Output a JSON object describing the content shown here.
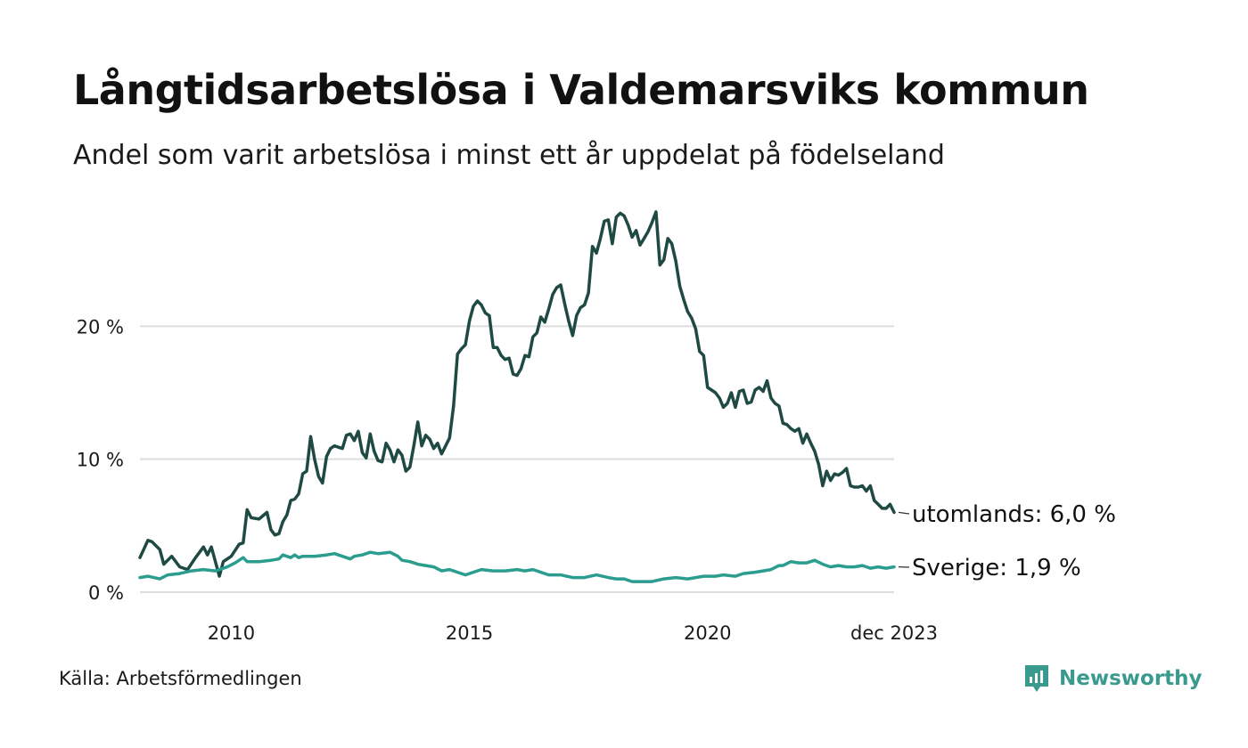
{
  "header": {
    "title": "Långtidsarbetslösa i Valdemarsviks kommun",
    "subtitle": "Andel som varit arbetslösa i minst ett år uppdelat på födelseland"
  },
  "footer": {
    "source": "Källa: Arbetsförmedlingen",
    "brand": "Newsworthy"
  },
  "colors": {
    "utomlands": "#1f4a44",
    "sverige": "#2a9d8f",
    "grid": "#dddddd",
    "brand": "#3a9a8e"
  },
  "chart_data": {
    "type": "line",
    "title": "Långtidsarbetslösa i Valdemarsviks kommun",
    "subtitle": "Andel som varit arbetslösa i minst ett år uppdelat på födelseland",
    "xlabel": "",
    "ylabel": "",
    "x_range": [
      2008.083,
      2023.917
    ],
    "ylim": [
      0,
      30
    ],
    "grid": true,
    "y_ticks": [
      {
        "value": 0,
        "label": "0 %"
      },
      {
        "value": 10,
        "label": "10 %"
      },
      {
        "value": 20,
        "label": "20 %"
      }
    ],
    "x_ticks": [
      {
        "value": 2010,
        "label": "2010"
      },
      {
        "value": 2015,
        "label": "2015"
      },
      {
        "value": 2020,
        "label": "2020"
      },
      {
        "value": 2023.917,
        "label": "dec 2023"
      }
    ],
    "series": [
      {
        "name": "utomlands",
        "end_label": "utomlands: 6,0 %",
        "color": "#1f4a44",
        "points": [
          [
            2008.083,
            2.6
          ],
          [
            2008.25,
            3.9
          ],
          [
            2008.333,
            3.8
          ],
          [
            2008.5,
            3.2
          ],
          [
            2008.583,
            2.1
          ],
          [
            2008.75,
            2.7
          ],
          [
            2008.917,
            1.9
          ],
          [
            2009.083,
            1.7
          ],
          [
            2009.25,
            2.6
          ],
          [
            2009.417,
            3.4
          ],
          [
            2009.5,
            2.8
          ],
          [
            2009.583,
            3.4
          ],
          [
            2009.75,
            1.2
          ],
          [
            2009.833,
            2.3
          ],
          [
            2010.0,
            2.7
          ],
          [
            2010.167,
            3.6
          ],
          [
            2010.25,
            3.7
          ],
          [
            2010.333,
            6.2
          ],
          [
            2010.417,
            5.6
          ],
          [
            2010.583,
            5.5
          ],
          [
            2010.75,
            6.0
          ],
          [
            2010.833,
            4.7
          ],
          [
            2010.917,
            4.3
          ],
          [
            2011.0,
            4.4
          ],
          [
            2011.083,
            5.3
          ],
          [
            2011.167,
            5.8
          ],
          [
            2011.25,
            6.9
          ],
          [
            2011.333,
            7.0
          ],
          [
            2011.417,
            7.4
          ],
          [
            2011.5,
            8.9
          ],
          [
            2011.583,
            9.1
          ],
          [
            2011.667,
            11.7
          ],
          [
            2011.75,
            10.0
          ],
          [
            2011.833,
            8.7
          ],
          [
            2011.917,
            8.2
          ],
          [
            2012.0,
            10.2
          ],
          [
            2012.083,
            10.8
          ],
          [
            2012.167,
            11.0
          ],
          [
            2012.333,
            10.8
          ],
          [
            2012.417,
            11.8
          ],
          [
            2012.5,
            11.9
          ],
          [
            2012.583,
            11.4
          ],
          [
            2012.667,
            12.1
          ],
          [
            2012.75,
            10.5
          ],
          [
            2012.833,
            10.1
          ],
          [
            2012.917,
            11.9
          ],
          [
            2013.0,
            10.6
          ],
          [
            2013.083,
            9.9
          ],
          [
            2013.167,
            9.8
          ],
          [
            2013.25,
            11.2
          ],
          [
            2013.333,
            10.7
          ],
          [
            2013.417,
            9.8
          ],
          [
            2013.5,
            10.7
          ],
          [
            2013.583,
            10.3
          ],
          [
            2013.667,
            9.1
          ],
          [
            2013.75,
            9.4
          ],
          [
            2013.833,
            11.0
          ],
          [
            2013.917,
            12.8
          ],
          [
            2014.0,
            11.0
          ],
          [
            2014.083,
            11.8
          ],
          [
            2014.167,
            11.5
          ],
          [
            2014.25,
            10.8
          ],
          [
            2014.333,
            11.2
          ],
          [
            2014.417,
            10.4
          ],
          [
            2014.5,
            11.0
          ],
          [
            2014.583,
            11.6
          ],
          [
            2014.667,
            14.0
          ],
          [
            2014.75,
            17.9
          ],
          [
            2014.833,
            18.3
          ],
          [
            2014.917,
            18.6
          ],
          [
            2015.0,
            20.4
          ],
          [
            2015.083,
            21.5
          ],
          [
            2015.167,
            21.9
          ],
          [
            2015.25,
            21.6
          ],
          [
            2015.333,
            21.0
          ],
          [
            2015.417,
            20.8
          ],
          [
            2015.5,
            18.4
          ],
          [
            2015.583,
            18.4
          ],
          [
            2015.667,
            17.8
          ],
          [
            2015.75,
            17.5
          ],
          [
            2015.833,
            17.6
          ],
          [
            2015.917,
            16.4
          ],
          [
            2016.0,
            16.3
          ],
          [
            2016.083,
            16.8
          ],
          [
            2016.167,
            17.8
          ],
          [
            2016.25,
            17.7
          ],
          [
            2016.333,
            19.2
          ],
          [
            2016.417,
            19.5
          ],
          [
            2016.5,
            20.7
          ],
          [
            2016.583,
            20.3
          ],
          [
            2016.667,
            21.3
          ],
          [
            2016.75,
            22.4
          ],
          [
            2016.833,
            22.9
          ],
          [
            2016.917,
            23.1
          ],
          [
            2017.0,
            21.7
          ],
          [
            2017.083,
            20.4
          ],
          [
            2017.167,
            19.3
          ],
          [
            2017.25,
            20.8
          ],
          [
            2017.333,
            21.4
          ],
          [
            2017.417,
            21.6
          ],
          [
            2017.5,
            22.5
          ],
          [
            2017.583,
            26.0
          ],
          [
            2017.667,
            25.5
          ],
          [
            2017.75,
            26.6
          ],
          [
            2017.833,
            27.9
          ],
          [
            2017.917,
            28.0
          ],
          [
            2018.0,
            26.2
          ],
          [
            2018.083,
            28.2
          ],
          [
            2018.167,
            28.5
          ],
          [
            2018.25,
            28.3
          ],
          [
            2018.333,
            27.6
          ],
          [
            2018.417,
            26.7
          ],
          [
            2018.5,
            27.2
          ],
          [
            2018.583,
            26.1
          ],
          [
            2018.667,
            26.6
          ],
          [
            2018.75,
            27.1
          ],
          [
            2018.833,
            27.8
          ],
          [
            2018.917,
            28.6
          ],
          [
            2019.0,
            24.6
          ],
          [
            2019.083,
            25.0
          ],
          [
            2019.167,
            26.6
          ],
          [
            2019.25,
            26.2
          ],
          [
            2019.333,
            24.9
          ],
          [
            2019.417,
            23.0
          ],
          [
            2019.5,
            22.0
          ],
          [
            2019.583,
            21.1
          ],
          [
            2019.667,
            20.6
          ],
          [
            2019.75,
            19.8
          ],
          [
            2019.833,
            18.1
          ],
          [
            2019.917,
            17.8
          ],
          [
            2020.0,
            15.4
          ],
          [
            2020.083,
            15.2
          ],
          [
            2020.167,
            15.0
          ],
          [
            2020.25,
            14.6
          ],
          [
            2020.333,
            13.9
          ],
          [
            2020.417,
            14.2
          ],
          [
            2020.5,
            15.0
          ],
          [
            2020.583,
            13.9
          ],
          [
            2020.667,
            15.1
          ],
          [
            2020.75,
            15.2
          ],
          [
            2020.833,
            14.2
          ],
          [
            2020.917,
            14.3
          ],
          [
            2021.0,
            15.2
          ],
          [
            2021.083,
            15.4
          ],
          [
            2021.167,
            15.1
          ],
          [
            2021.25,
            15.9
          ],
          [
            2021.333,
            14.6
          ],
          [
            2021.417,
            14.2
          ],
          [
            2021.5,
            14.0
          ],
          [
            2021.583,
            12.7
          ],
          [
            2021.667,
            12.6
          ],
          [
            2021.75,
            12.3
          ],
          [
            2021.833,
            12.1
          ],
          [
            2021.917,
            12.3
          ],
          [
            2022.0,
            11.2
          ],
          [
            2022.083,
            11.9
          ],
          [
            2022.167,
            11.2
          ],
          [
            2022.25,
            10.6
          ],
          [
            2022.333,
            9.6
          ],
          [
            2022.417,
            8.0
          ],
          [
            2022.5,
            9.1
          ],
          [
            2022.583,
            8.4
          ],
          [
            2022.667,
            8.9
          ],
          [
            2022.75,
            8.8
          ],
          [
            2022.833,
            9.0
          ],
          [
            2022.917,
            9.3
          ],
          [
            2023.0,
            8.0
          ],
          [
            2023.083,
            7.9
          ],
          [
            2023.167,
            7.9
          ],
          [
            2023.25,
            8.0
          ],
          [
            2023.333,
            7.6
          ],
          [
            2023.417,
            8.0
          ],
          [
            2023.5,
            6.9
          ],
          [
            2023.583,
            6.6
          ],
          [
            2023.667,
            6.3
          ],
          [
            2023.75,
            6.3
          ],
          [
            2023.833,
            6.6
          ],
          [
            2023.917,
            6.0
          ]
        ]
      },
      {
        "name": "Sverige",
        "end_label": "Sverige: 1,9 %",
        "color": "#2a9d8f",
        "points": [
          [
            2008.083,
            1.1
          ],
          [
            2008.25,
            1.2
          ],
          [
            2008.5,
            1.0
          ],
          [
            2008.667,
            1.3
          ],
          [
            2008.917,
            1.4
          ],
          [
            2009.167,
            1.6
          ],
          [
            2009.417,
            1.7
          ],
          [
            2009.667,
            1.6
          ],
          [
            2009.917,
            1.9
          ],
          [
            2010.083,
            2.2
          ],
          [
            2010.25,
            2.6
          ],
          [
            2010.333,
            2.3
          ],
          [
            2010.583,
            2.3
          ],
          [
            2010.833,
            2.4
          ],
          [
            2011.0,
            2.5
          ],
          [
            2011.083,
            2.8
          ],
          [
            2011.25,
            2.6
          ],
          [
            2011.333,
            2.8
          ],
          [
            2011.417,
            2.6
          ],
          [
            2011.5,
            2.7
          ],
          [
            2011.75,
            2.7
          ],
          [
            2012.0,
            2.8
          ],
          [
            2012.167,
            2.9
          ],
          [
            2012.333,
            2.7
          ],
          [
            2012.5,
            2.5
          ],
          [
            2012.583,
            2.7
          ],
          [
            2012.75,
            2.8
          ],
          [
            2012.917,
            3.0
          ],
          [
            2013.083,
            2.9
          ],
          [
            2013.333,
            3.0
          ],
          [
            2013.5,
            2.7
          ],
          [
            2013.583,
            2.4
          ],
          [
            2013.75,
            2.3
          ],
          [
            2013.917,
            2.1
          ],
          [
            2014.083,
            2.0
          ],
          [
            2014.25,
            1.9
          ],
          [
            2014.417,
            1.6
          ],
          [
            2014.583,
            1.7
          ],
          [
            2014.75,
            1.5
          ],
          [
            2014.917,
            1.3
          ],
          [
            2015.083,
            1.5
          ],
          [
            2015.25,
            1.7
          ],
          [
            2015.5,
            1.6
          ],
          [
            2015.75,
            1.6
          ],
          [
            2016.0,
            1.7
          ],
          [
            2016.167,
            1.6
          ],
          [
            2016.333,
            1.7
          ],
          [
            2016.5,
            1.5
          ],
          [
            2016.667,
            1.3
          ],
          [
            2016.917,
            1.3
          ],
          [
            2017.167,
            1.1
          ],
          [
            2017.417,
            1.1
          ],
          [
            2017.667,
            1.3
          ],
          [
            2017.917,
            1.1
          ],
          [
            2018.083,
            1.0
          ],
          [
            2018.25,
            1.0
          ],
          [
            2018.417,
            0.8
          ],
          [
            2018.583,
            0.8
          ],
          [
            2018.833,
            0.8
          ],
          [
            2019.083,
            1.0
          ],
          [
            2019.333,
            1.1
          ],
          [
            2019.583,
            1.0
          ],
          [
            2019.75,
            1.1
          ],
          [
            2019.917,
            1.2
          ],
          [
            2020.167,
            1.2
          ],
          [
            2020.333,
            1.3
          ],
          [
            2020.583,
            1.2
          ],
          [
            2020.75,
            1.4
          ],
          [
            2021.0,
            1.5
          ],
          [
            2021.167,
            1.6
          ],
          [
            2021.333,
            1.7
          ],
          [
            2021.5,
            2.0
          ],
          [
            2021.583,
            2.0
          ],
          [
            2021.75,
            2.3
          ],
          [
            2021.917,
            2.2
          ],
          [
            2022.083,
            2.2
          ],
          [
            2022.25,
            2.4
          ],
          [
            2022.417,
            2.1
          ],
          [
            2022.583,
            1.9
          ],
          [
            2022.75,
            2.0
          ],
          [
            2022.917,
            1.9
          ],
          [
            2023.083,
            1.9
          ],
          [
            2023.25,
            2.0
          ],
          [
            2023.417,
            1.8
          ],
          [
            2023.583,
            1.9
          ],
          [
            2023.75,
            1.8
          ],
          [
            2023.917,
            1.9
          ]
        ]
      }
    ]
  }
}
